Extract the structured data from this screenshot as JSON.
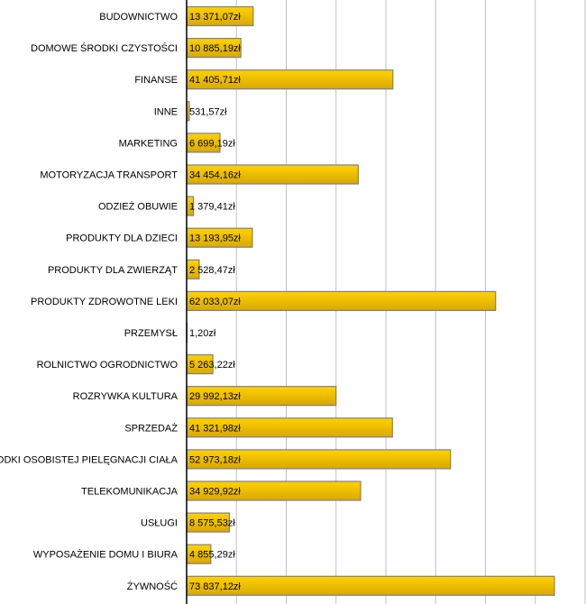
{
  "chart_data": {
    "type": "bar",
    "orientation": "horizontal",
    "title": "",
    "xlabel": "",
    "ylabel": "",
    "xlim": [
      0,
      80000
    ],
    "grid": true,
    "grid_step": 10000,
    "bar_color": "#F2C200",
    "bar_border": "#7F7F8F",
    "categories": [
      "BUDOWNICTWO",
      "DOMOWE ŚRODKI CZYSTOŚCI",
      "FINANSE",
      "INNE",
      "MARKETING",
      "MOTORYZACJA TRANSPORT",
      "ODZIEŻ OBUWIE",
      "PRODUKTY DLA DZIECI",
      "PRODUKTY DLA ZWIERZĄT",
      "PRODUKTY ZDROWOTNE LEKI",
      "PRZEMYSŁ",
      "ROLNICTWO OGRODNICTWO",
      "ROZRYWKA KULTURA",
      "SPRZEDAŻ",
      "ŚRODKI OSOBISTEJ PIELĘGNACJI CIAŁA",
      "TELEKOMUNIKACJA",
      "USŁUGI",
      "WYPOSAŻENIE DOMU I BIURA",
      "ŻYWNOŚĆ"
    ],
    "values": [
      13371.07,
      10885.19,
      41405.71,
      531.57,
      6699.19,
      34454.16,
      1379.41,
      13193.95,
      2528.47,
      62033.07,
      1.2,
      5263.22,
      29992.13,
      41321.98,
      52973.18,
      34929.92,
      8575.53,
      4855.29,
      73837.12
    ],
    "labels": [
      "13 371,07zł",
      "10 885,19zł",
      "41 405,71zł",
      "531,57zł",
      "6 699,19zł",
      "34 454,16zł",
      "1 379,41zł",
      "13 193,95zł",
      "2 528,47zł",
      "62 033,07zł",
      "1,20zł",
      "5 263,22zł",
      "29 992,13zł",
      "41 321,98zł",
      "52 973,18zł",
      "34 929,92zł",
      "8 575,53zł",
      "4 855,29zł",
      "73 837,12zł"
    ]
  }
}
